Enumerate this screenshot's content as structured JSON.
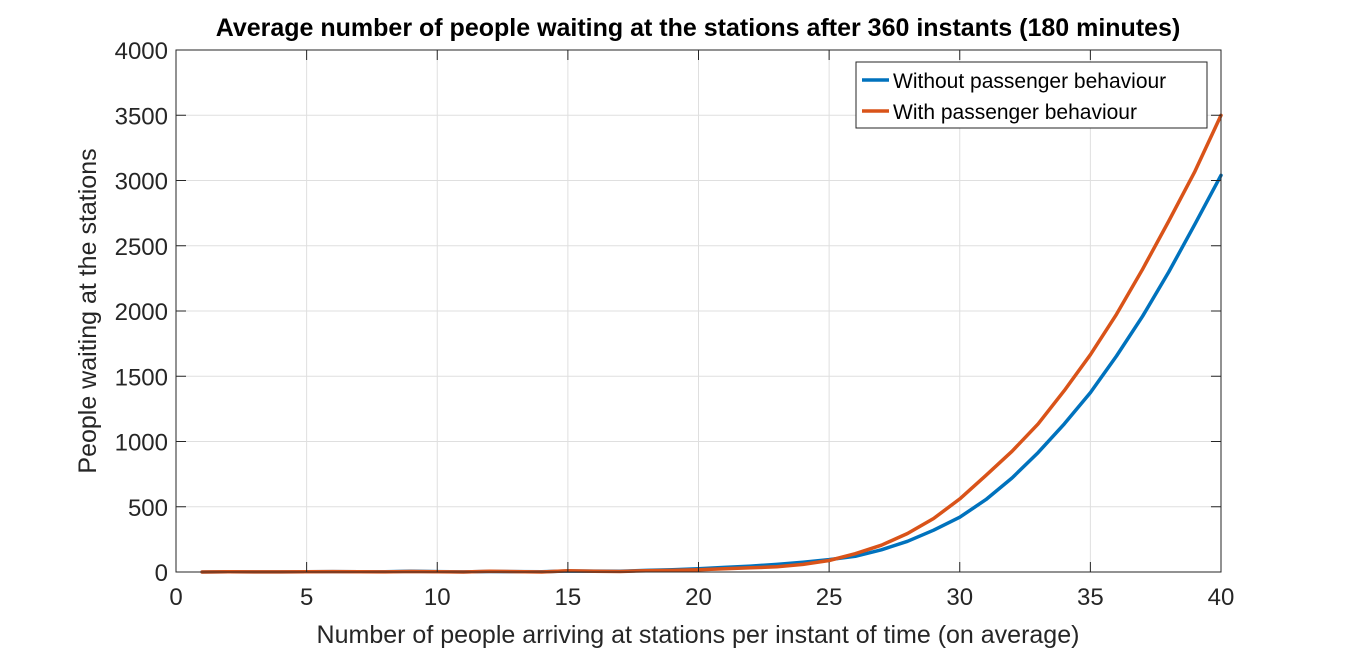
{
  "chart_data": {
    "type": "line",
    "title": "Average number of people waiting at the stations after 360 instants (180 minutes)",
    "xlabel": "Number of people arriving at stations per instant of time (on average)",
    "ylabel": "People waiting at the stations",
    "xlim": [
      0,
      40
    ],
    "ylim": [
      0,
      4000
    ],
    "xticks": [
      0,
      5,
      10,
      15,
      20,
      25,
      30,
      35,
      40
    ],
    "yticks": [
      0,
      500,
      1000,
      1500,
      2000,
      2500,
      3000,
      3500,
      4000
    ],
    "grid": true,
    "legend_position": "top-right",
    "x": [
      1,
      2,
      3,
      4,
      5,
      6,
      7,
      8,
      9,
      10,
      11,
      12,
      13,
      14,
      15,
      16,
      17,
      18,
      19,
      20,
      21,
      22,
      23,
      24,
      25,
      26,
      27,
      28,
      29,
      30,
      31,
      32,
      33,
      34,
      35,
      36,
      37,
      38,
      39,
      40
    ],
    "series": [
      {
        "name": "Without passenger behaviour",
        "color": "#0072BD",
        "values": [
          0,
          2,
          1,
          1,
          2,
          3,
          2,
          2,
          5,
          3,
          1,
          4,
          3,
          2,
          8,
          7,
          6,
          12,
          17,
          25,
          35,
          45,
          58,
          75,
          95,
          120,
          170,
          235,
          320,
          420,
          555,
          720,
          915,
          1135,
          1375,
          1655,
          1960,
          2300,
          2665,
          3040
        ]
      },
      {
        "name": "With passenger behaviour",
        "color": "#D95319",
        "values": [
          0,
          2,
          1,
          1,
          2,
          3,
          2,
          1,
          4,
          2,
          0,
          5,
          3,
          0,
          9,
          6,
          4,
          10,
          12,
          18,
          25,
          32,
          40,
          58,
          88,
          140,
          205,
          295,
          410,
          560,
          740,
          925,
          1135,
          1390,
          1665,
          1975,
          2320,
          2690,
          3070,
          3500
        ]
      }
    ]
  }
}
